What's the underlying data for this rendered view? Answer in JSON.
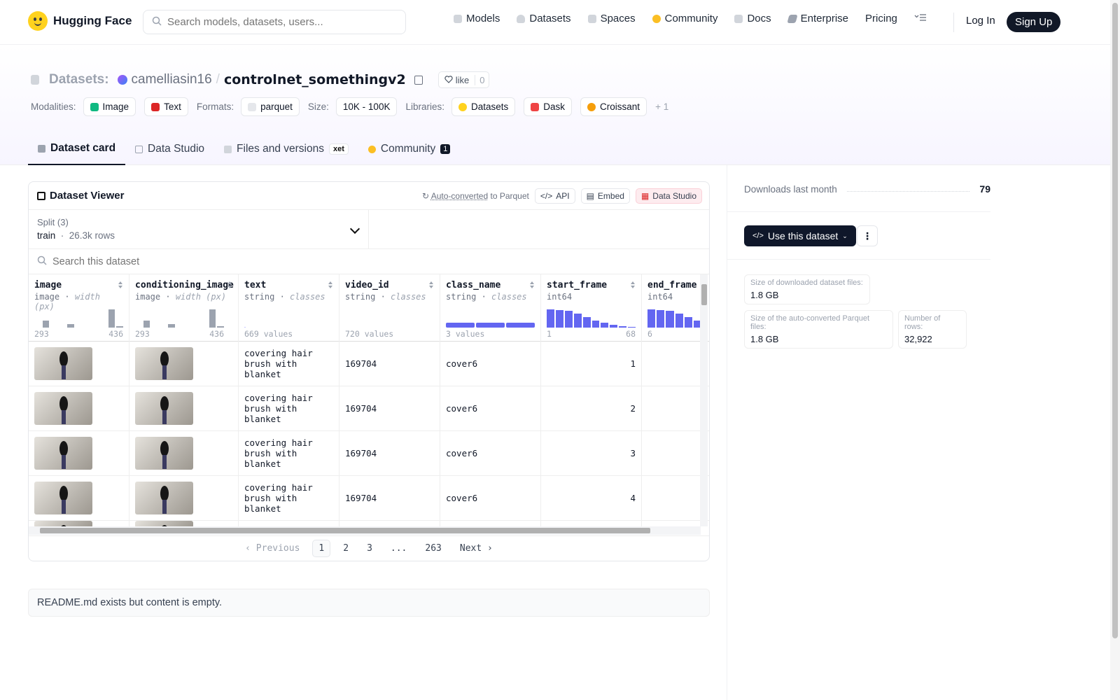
{
  "nav": {
    "brand": "Hugging Face",
    "search_placeholder": "Search models, datasets, users...",
    "links": [
      "Models",
      "Datasets",
      "Spaces",
      "Community",
      "Docs",
      "Enterprise",
      "Pricing"
    ],
    "login": "Log In",
    "signup": "Sign Up"
  },
  "header": {
    "section": "Datasets:",
    "owner": "camelliasin16",
    "repo": "controlnet_somethingv2",
    "like_label": "like",
    "like_count": "0",
    "tags": {
      "modalities_label": "Modalities:",
      "modalities": [
        "Image",
        "Text"
      ],
      "formats_label": "Formats:",
      "formats": [
        "parquet"
      ],
      "size_label": "Size:",
      "size": "10K - 100K",
      "libraries_label": "Libraries:",
      "libraries": [
        "Datasets",
        "Dask",
        "Croissant"
      ],
      "more": "+ 1"
    },
    "tabs": [
      "Dataset card",
      "Data Studio",
      "Files and versions",
      "Community"
    ],
    "xet_label": "xet",
    "community_count": "1"
  },
  "viewer": {
    "title": "Dataset Viewer",
    "autoconv": "Auto-converted",
    "to_parquet": "to Parquet",
    "api": "API",
    "embed": "Embed",
    "data_studio": "Data Studio",
    "split_label": "Split (3)",
    "split_name": "train",
    "split_rows": "26.3k rows",
    "search_placeholder": "Search this dataset",
    "columns": [
      {
        "name": "image",
        "type": "image",
        "sub": "width (px)",
        "min": "293",
        "max": "436"
      },
      {
        "name": "conditioning_image",
        "type": "image",
        "sub": "width (px)",
        "min": "293",
        "max": "436"
      },
      {
        "name": "text",
        "type": "string",
        "sub": "classes",
        "foot": "669 values"
      },
      {
        "name": "video_id",
        "type": "string",
        "sub": "classes",
        "foot": "720 values"
      },
      {
        "name": "class_name",
        "type": "string",
        "sub": "classes",
        "foot": "3 values"
      },
      {
        "name": "start_frame",
        "type": "int64",
        "sub": "",
        "min": "1",
        "max": "68"
      },
      {
        "name": "end_frame",
        "type": "int64",
        "sub": "",
        "min": "6",
        "max": ""
      }
    ],
    "rows": [
      {
        "text1": "covering hair",
        "text2": "brush with blanket",
        "video_id": "169704",
        "class_name": "cover6",
        "start_frame": "1"
      },
      {
        "text1": "covering hair",
        "text2": "brush with blanket",
        "video_id": "169704",
        "class_name": "cover6",
        "start_frame": "2"
      },
      {
        "text1": "covering hair",
        "text2": "brush with blanket",
        "video_id": "169704",
        "class_name": "cover6",
        "start_frame": "3"
      },
      {
        "text1": "covering hair",
        "text2": "brush with blanket",
        "video_id": "169704",
        "class_name": "cover6",
        "start_frame": "4"
      }
    ],
    "pager": {
      "prev": "Previous",
      "pages": [
        "1",
        "2",
        "3",
        "...",
        "263"
      ],
      "next": "Next"
    }
  },
  "readme": "README.md exists but content is empty.",
  "sidebar": {
    "downloads_label": "Downloads last month",
    "downloads": "79",
    "use_btn": "Use this dataset",
    "stats": [
      {
        "k": "Size of downloaded dataset files:",
        "v": "1.8 GB"
      },
      {
        "k": "Size of the auto-converted Parquet files:",
        "v": "1.8 GB"
      },
      {
        "k": "Number of rows:",
        "v": "32,922"
      }
    ]
  },
  "colors": {
    "accent": "#6366f1",
    "dark": "#111827",
    "hf_yellow": "#ffd21e"
  }
}
